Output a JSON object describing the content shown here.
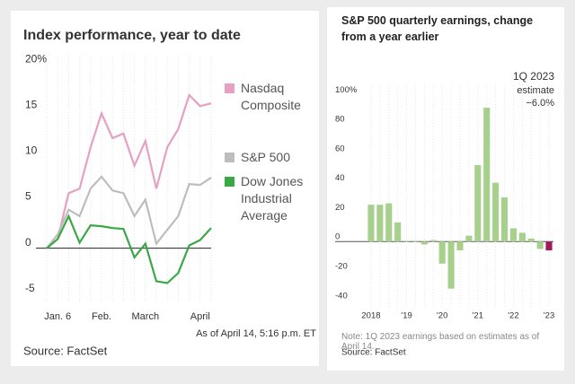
{
  "chart_data": [
    {
      "type": "line",
      "title": "Index performance, year to date",
      "categories": [
        null,
        "Jan. 6",
        null,
        null,
        null,
        "Feb.",
        null,
        null,
        null,
        "March",
        null,
        null,
        null,
        null,
        "April",
        null
      ],
      "series": [
        {
          "name": "Nasdaq Composite",
          "color": "#e6a0c3",
          "values": [
            0,
            1,
            6,
            6.5,
            11,
            14.7,
            12,
            12.5,
            9,
            11.7,
            6.5,
            11,
            13,
            16.7,
            15.5,
            15.8
          ]
        },
        {
          "name": "S&P 500",
          "color": "#bdbdbd",
          "values": [
            0,
            1.5,
            4.2,
            3.5,
            6.5,
            7.8,
            6.3,
            6,
            3.5,
            5.3,
            0.5,
            2,
            3.5,
            7,
            6.9,
            7.7
          ]
        },
        {
          "name": "Dow Jones Industrial Average",
          "color": "#3aa845",
          "values": [
            0,
            1,
            3.5,
            0.6,
            2.5,
            2.4,
            2.2,
            2.1,
            -1,
            0.5,
            -3.6,
            -3.8,
            -2.7,
            0.3,
            0.9,
            2.2
          ]
        }
      ],
      "ylim": [
        -6,
        21
      ],
      "yticks": [
        {
          "value": 20,
          "label": "20%"
        },
        15,
        10,
        5,
        0,
        -5
      ],
      "annotation": "As of April 14, 5:16 p.m. ET",
      "source": "Source: FactSet"
    },
    {
      "type": "bar",
      "title": "S&P 500 quarterly earnings, change from a year earlier",
      "categories": [
        "2018",
        null,
        null,
        null,
        "'19",
        null,
        null,
        null,
        "'20",
        null,
        null,
        null,
        "'21",
        null,
        null,
        null,
        "'22",
        null,
        null,
        null,
        "'23"
      ],
      "values": [
        25,
        25,
        26,
        13,
        0.5,
        -0.3,
        -2,
        1,
        -15,
        -32,
        -6,
        4,
        52,
        91,
        40,
        30,
        9,
        6,
        2,
        -5,
        -6
      ],
      "colors": [
        "#a8d08d",
        "#a8d08d",
        "#a8d08d",
        "#a8d08d",
        "#a8d08d",
        "#a8d08d",
        "#a8d08d",
        "#a8d08d",
        "#a8d08d",
        "#a8d08d",
        "#a8d08d",
        "#a8d08d",
        "#a8d08d",
        "#a8d08d",
        "#a8d08d",
        "#a8d08d",
        "#a8d08d",
        "#a8d08d",
        "#a8d08d",
        "#a8d08d",
        "#a3195b"
      ],
      "ylim": [
        -45,
        102
      ],
      "yticks": [
        {
          "value": 100,
          "label": "100%"
        },
        80,
        60,
        40,
        20,
        0,
        -20,
        -40
      ],
      "callout": {
        "title": "1Q 2023",
        "subtitle": "estimate",
        "value": "−6.0%"
      },
      "note": "Note: 1Q 2023 earnings based on estimates as of April 14.",
      "source": "Source: FactSet"
    }
  ]
}
